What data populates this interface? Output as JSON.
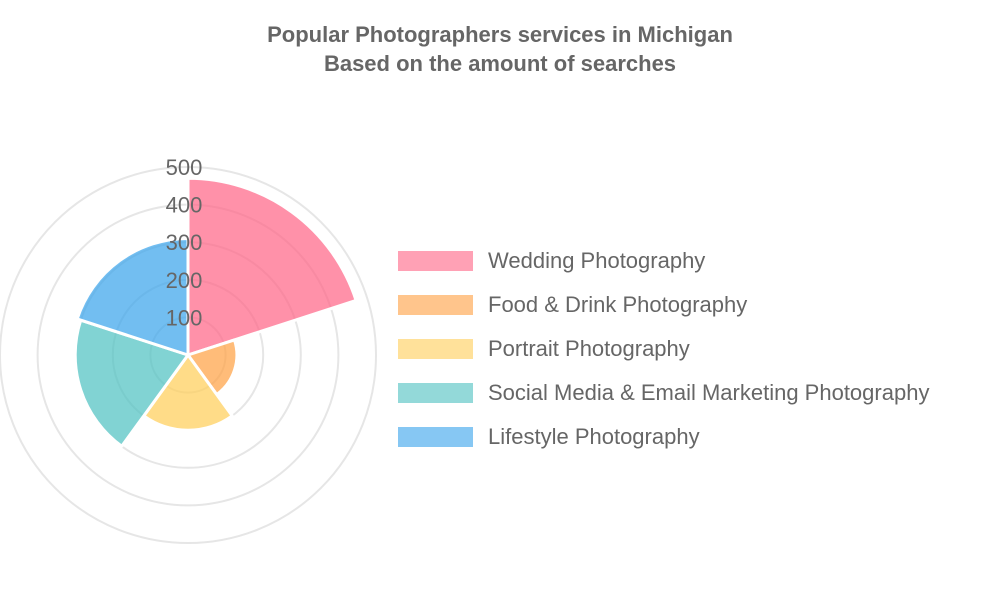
{
  "chart_data": {
    "type": "polarArea",
    "title": [
      "Popular Photographers services in Michigan",
      "Based on the amount of searches"
    ],
    "categories": [
      "Wedding Photography",
      "Food & Drink Photography",
      "Portrait Photography",
      "Social Media & Email Marketing Photography",
      "Lifestyle Photography"
    ],
    "values": [
      470,
      130,
      200,
      300,
      310
    ],
    "colors": [
      "#ff6384",
      "#ff9f40",
      "#ffcd56",
      "#4bc0c0",
      "#36a2eb"
    ],
    "fill_opacity": 0.7,
    "rlim": [
      0,
      500
    ],
    "ticks": [
      100,
      200,
      300,
      400,
      500
    ],
    "grid": true,
    "legend": "right"
  }
}
